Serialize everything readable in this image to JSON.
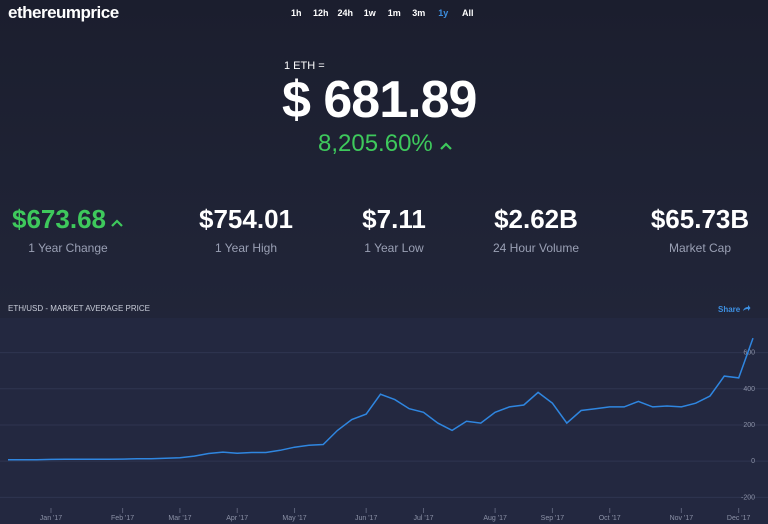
{
  "header": {
    "logo": "ethereumprice",
    "ranges": [
      "1h",
      "12h",
      "24h",
      "1w",
      "1m",
      "3m",
      "1y",
      "All"
    ],
    "active_range": "1y"
  },
  "price": {
    "label": "1 ETH =",
    "value": "$ 681.89",
    "change": "8,205.60%"
  },
  "stats": [
    {
      "value": "$673.68",
      "label": "1 Year Change",
      "color": "#3ec95c"
    },
    {
      "value": "$754.01",
      "label": "1 Year High",
      "color": "#ffffff"
    },
    {
      "value": "$7.11",
      "label": "1 Year Low",
      "color": "#ffffff"
    },
    {
      "value": "$2.62B",
      "label": "24 Hour Volume",
      "color": "#ffffff"
    },
    {
      "value": "$65.73B",
      "label": "Market Cap",
      "color": "#ffffff"
    }
  ],
  "chart": {
    "type": "line",
    "title": "ETH/USD - MARKET AVERAGE PRICE",
    "share": "Share",
    "color": "#2f86e0",
    "categories": [
      null,
      null,
      null,
      "Jan '17",
      null,
      null,
      null,
      null,
      "Feb '17",
      null,
      null,
      null,
      "Mar '17",
      null,
      null,
      null,
      "Apr '17",
      null,
      null,
      null,
      "May '17",
      null,
      null,
      null,
      null,
      "Jun '17",
      null,
      null,
      null,
      "Jul '17",
      null,
      null,
      null,
      null,
      "Aug '17",
      null,
      null,
      null,
      "Sep '17",
      null,
      null,
      null,
      "Oct '17",
      null,
      null,
      null,
      null,
      "Nov '17",
      null,
      null,
      null,
      "Dec '17",
      null
    ],
    "values": [
      8,
      8,
      7.5,
      9.5,
      10,
      10,
      10.5,
      10.7,
      11.3,
      12.8,
      13,
      16,
      19,
      28,
      42,
      50,
      44,
      48,
      48,
      60,
      77,
      88,
      92,
      170,
      230,
      260,
      370,
      340,
      290,
      270,
      210,
      170,
      220,
      210,
      270,
      300,
      310,
      380,
      320,
      210,
      280,
      290,
      300,
      300,
      330,
      300,
      305,
      300,
      320,
      360,
      470,
      460,
      680
    ],
    "ylim": [
      -270,
      780
    ],
    "yticks": [
      -200,
      0,
      200,
      400,
      600
    ],
    "grid": true
  }
}
